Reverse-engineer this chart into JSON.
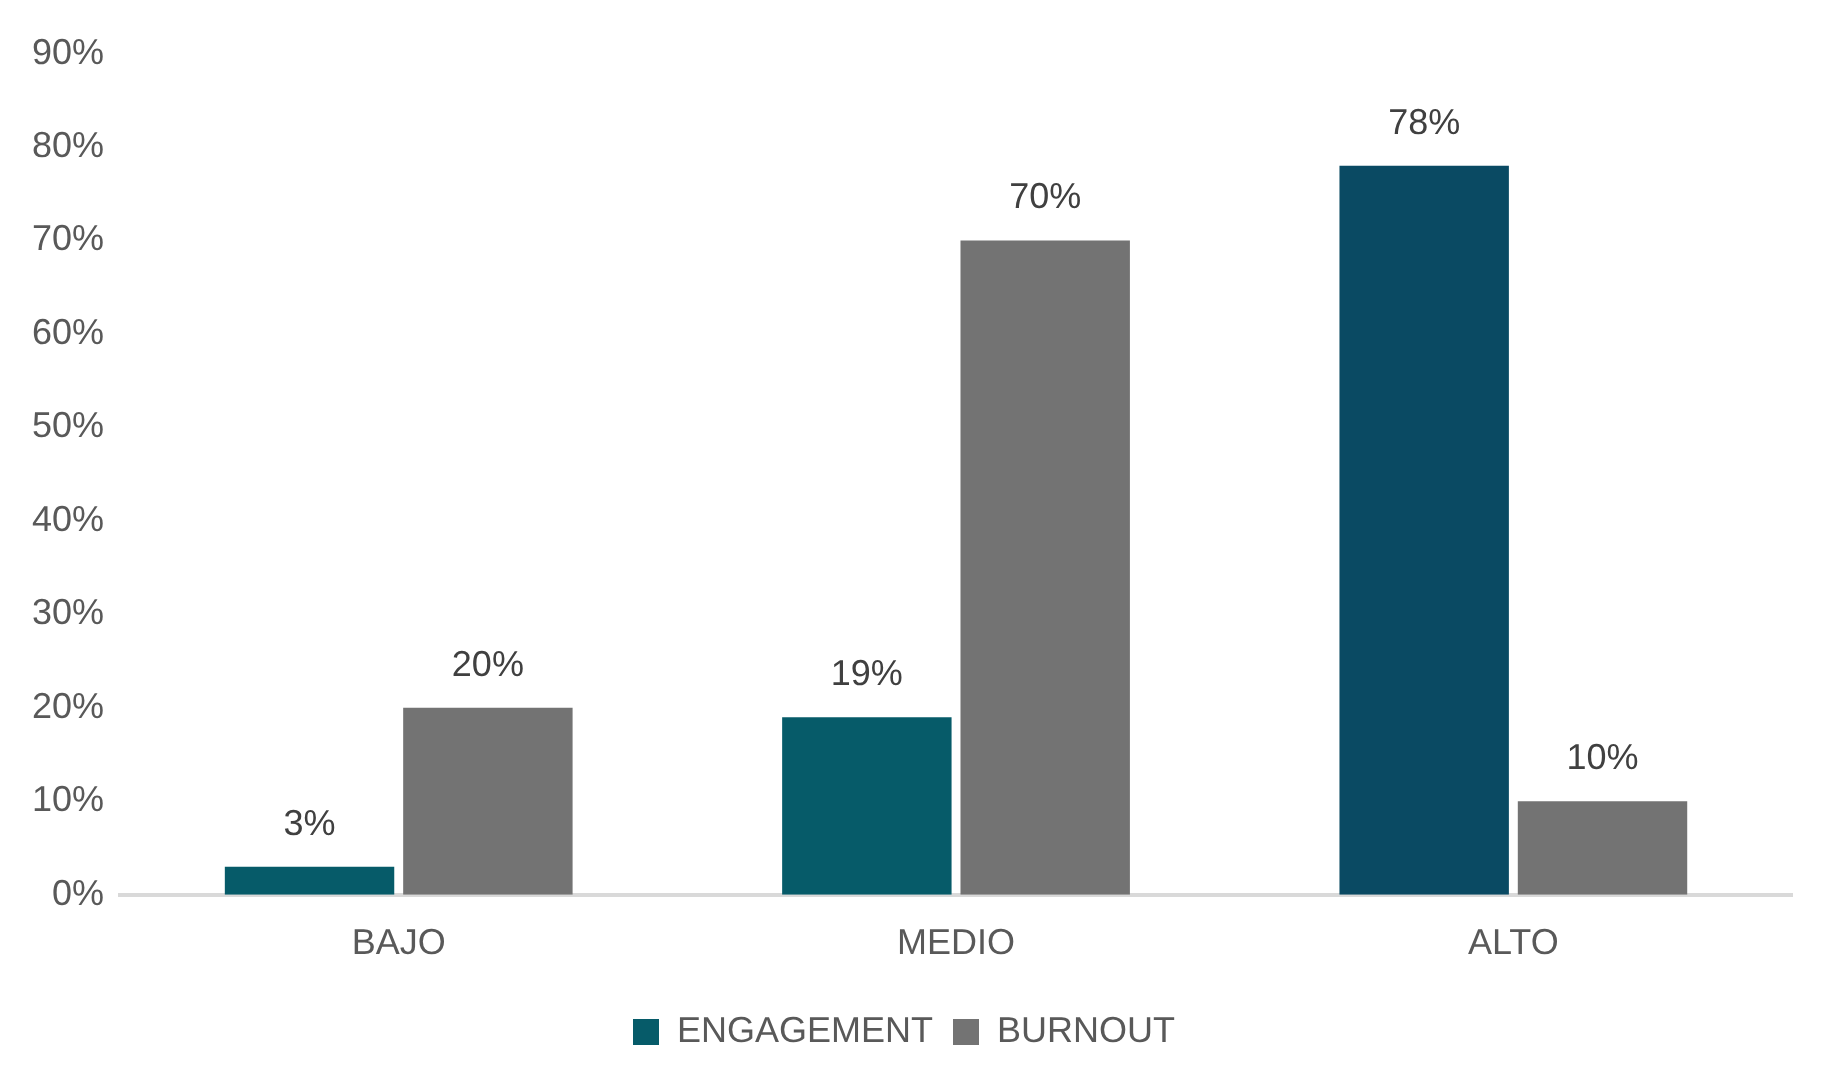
{
  "chart_data": {
    "type": "bar",
    "categories": [
      "BAJO",
      "MEDIO",
      "ALTO"
    ],
    "series": [
      {
        "name": "ENGAGEMENT",
        "color": "#065b69",
        "colors": [
          "#065b69",
          "#065b69",
          "#0a4a63"
        ],
        "values": [
          3,
          19,
          78
        ],
        "value_labels": [
          "3%",
          "19%",
          "78%"
        ]
      },
      {
        "name": "BURNOUT",
        "color": "#737373",
        "values": [
          20,
          70,
          10
        ],
        "value_labels": [
          "20%",
          "70%",
          "10%"
        ]
      }
    ],
    "ylim": [
      0,
      90
    ],
    "yticks": [
      {
        "value": 0,
        "label": "0%"
      },
      {
        "value": 10,
        "label": "10%"
      },
      {
        "value": 20,
        "label": "20%"
      },
      {
        "value": 30,
        "label": "30%"
      },
      {
        "value": 40,
        "label": "40%"
      },
      {
        "value": 50,
        "label": "50%"
      },
      {
        "value": 60,
        "label": "60%"
      },
      {
        "value": 70,
        "label": "70%"
      },
      {
        "value": 80,
        "label": "80%"
      },
      {
        "value": 90,
        "label": "90%"
      }
    ],
    "grid": false,
    "legend": "bottom"
  }
}
